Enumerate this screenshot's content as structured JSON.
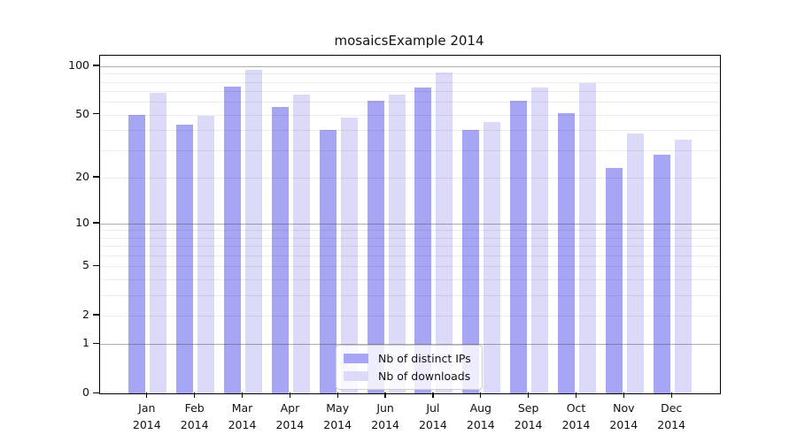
{
  "title": "mosaicsExample 2014",
  "colors": {
    "ips_bar": "#a6a6f4",
    "downloads_bar": "#dbdbf9",
    "frame": "#000000"
  },
  "legend": {
    "entries": [
      {
        "label": "Nb of distinct IPs",
        "series": "ips"
      },
      {
        "label": "Nb of downloads",
        "series": "downloads"
      }
    ]
  },
  "chart_data": {
    "type": "bar",
    "title": "mosaicsExample 2014",
    "categories": [
      "Jan",
      "Feb",
      "Mar",
      "Apr",
      "May",
      "Jun",
      "Jul",
      "Aug",
      "Sep",
      "Oct",
      "Nov",
      "Dec"
    ],
    "year": "2014",
    "series": [
      {
        "name": "Nb of distinct IPs",
        "values": [
          50,
          43,
          75,
          56,
          40,
          61,
          74,
          40,
          61,
          51,
          23,
          28
        ]
      },
      {
        "name": "Nb of downloads",
        "values": [
          68,
          49,
          95,
          67,
          48,
          67,
          91,
          45,
          74,
          79,
          38,
          35
        ]
      }
    ],
    "y_axis": {
      "scale": "log10(1+x)",
      "tick_labels": [
        100,
        50,
        20,
        10,
        5,
        2,
        1,
        0
      ],
      "decade_gridlines": [
        100,
        10,
        1
      ],
      "light_gridlines": [
        90,
        80,
        70,
        60,
        50,
        40,
        30,
        20,
        9,
        8,
        7,
        6,
        5,
        4,
        3,
        2
      ],
      "top_value": 116
    },
    "legend_position": "inside lower-center",
    "grid": "on"
  }
}
